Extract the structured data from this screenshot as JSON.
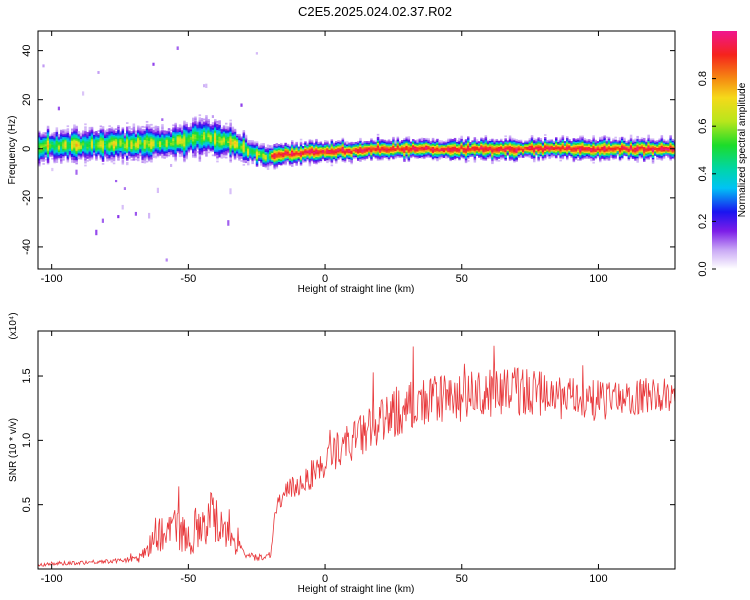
{
  "title": "C2E5.2025.024.02.37.R02",
  "chart_data": [
    {
      "type": "heatmap",
      "xlabel": "Height of straight line (km)",
      "ylabel": "Frequency (Hz)",
      "xlim": [
        -105,
        128
      ],
      "ylim": [
        -49,
        48
      ],
      "xticks": [
        -100,
        -50,
        0,
        50,
        100
      ],
      "yticks": [
        -40,
        -20,
        0,
        20,
        40
      ],
      "colorbar": {
        "label": "Normalized spectral amplitude",
        "range": [
          0,
          1
        ],
        "ticks": [
          0.0,
          0.2,
          0.4,
          0.6,
          0.8
        ],
        "tick_labels": [
          "0.0",
          "0.2",
          "0.4",
          "0.6",
          "0.8"
        ]
      },
      "ridge": {
        "x": [
          -105,
          -90,
          -70,
          -55,
          -45,
          -35,
          -28,
          -22,
          -15,
          -5,
          5,
          20,
          40,
          60,
          80,
          100,
          128
        ],
        "center_hz": [
          1,
          1.5,
          2,
          3,
          5,
          3,
          -1,
          -3,
          -2,
          -1,
          -1,
          0,
          0,
          0,
          0,
          0,
          0
        ],
        "halfwidth_hz": [
          5,
          5,
          5,
          5,
          6,
          5,
          4,
          3,
          3,
          3,
          3,
          3,
          3,
          3,
          3,
          3,
          3
        ]
      }
    },
    {
      "type": "line",
      "xlabel": "Height of straight line (km)",
      "ylabel": "SNR (10 * v/v)",
      "scale_label": "(x10⁴)",
      "xlim": [
        -105,
        128
      ],
      "ylim": [
        0,
        1.85
      ],
      "xticks": [
        -100,
        -50,
        0,
        50,
        100
      ],
      "yticks": [
        0.5,
        1.0,
        1.5
      ],
      "ytick_labels": [
        "0.5",
        "1.0",
        "1.5"
      ],
      "series": [
        {
          "color": "#e8383b",
          "x": [
            -105,
            -95,
            -85,
            -75,
            -68,
            -62,
            -55,
            -50,
            -45,
            -40,
            -35,
            -30,
            -25,
            -20,
            -18,
            -15,
            -10,
            -5,
            0,
            5,
            10,
            15,
            20,
            25,
            30,
            35,
            40,
            45,
            50,
            55,
            60,
            65,
            70,
            75,
            80,
            85,
            90,
            95,
            100,
            105,
            110,
            115,
            120,
            128
          ],
          "y": [
            0.03,
            0.04,
            0.05,
            0.06,
            0.07,
            0.22,
            0.28,
            0.2,
            0.32,
            0.35,
            0.25,
            0.1,
            0.08,
            0.1,
            0.45,
            0.55,
            0.62,
            0.7,
            0.78,
            0.9,
            0.95,
            1.0,
            1.05,
            1.15,
            1.2,
            1.22,
            1.25,
            1.26,
            1.28,
            1.3,
            1.3,
            1.32,
            1.33,
            1.32,
            1.3,
            1.28,
            1.28,
            1.27,
            1.26,
            1.27,
            1.28,
            1.3,
            1.3,
            1.32
          ],
          "noise": [
            0.02,
            0.02,
            0.02,
            0.02,
            0.04,
            0.18,
            0.2,
            0.18,
            0.25,
            0.3,
            0.22,
            0.05,
            0.03,
            0.04,
            0.1,
            0.12,
            0.12,
            0.15,
            0.15,
            0.18,
            0.2,
            0.22,
            0.24,
            0.25,
            0.25,
            0.25,
            0.25,
            0.24,
            0.24,
            0.24,
            0.24,
            0.24,
            0.25,
            0.24,
            0.22,
            0.22,
            0.2,
            0.2,
            0.2,
            0.18,
            0.18,
            0.18,
            0.18,
            0.15
          ]
        }
      ]
    }
  ]
}
